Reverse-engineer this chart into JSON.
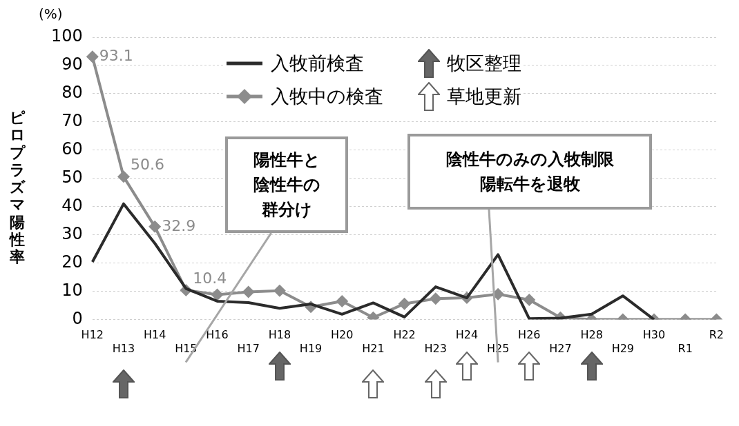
{
  "chart_data": {
    "type": "line",
    "ylabel": "ピロプラズマ陽性率",
    "categories": [
      "H12",
      "H13",
      "H14",
      "H15",
      "H16",
      "H17",
      "H18",
      "H19",
      "H20",
      "H21",
      "H22",
      "H23",
      "H24",
      "H25",
      "H26",
      "H27",
      "H28",
      "H29",
      "H30",
      "R1",
      "R2"
    ],
    "series": [
      {
        "name": "入牧前検査",
        "color": "#2b2b2b",
        "marker": "none",
        "values": [
          20.4,
          41,
          27,
          11,
          6.5,
          6,
          4,
          5.5,
          1.9,
          5.9,
          0.9,
          11.6,
          7.7,
          23,
          0.3,
          0.5,
          1.9,
          8.4,
          0,
          null,
          null
        ]
      },
      {
        "name": "入牧中の検査",
        "color": "#8c8c8c",
        "marker": "diamond",
        "values": [
          93.1,
          50.6,
          32.9,
          10.4,
          8.8,
          9.8,
          10.2,
          4.5,
          6.5,
          0.7,
          5.6,
          7.4,
          7.7,
          9,
          7,
          0.7,
          0,
          0,
          0,
          0,
          0
        ],
        "value_labels": [
          "93.1",
          "50.6",
          "32.9",
          "10.4",
          null,
          null,
          null,
          null,
          null,
          null,
          null,
          null,
          null,
          null,
          null,
          null,
          null,
          null,
          null,
          null,
          null
        ]
      }
    ],
    "ylim": [
      0,
      100
    ],
    "yticks": [
      0,
      10,
      20,
      30,
      40,
      50,
      60,
      70,
      80,
      90,
      100
    ],
    "grid": "y",
    "legend": "top",
    "line_style": "solid",
    "annotations": [
      "陽性牛と陰性牛の群分け",
      "陰性牛のみの入牧制限陽転牛を退牧",
      "牧区整理",
      "草地更新",
      "(%)"
    ]
  }
}
